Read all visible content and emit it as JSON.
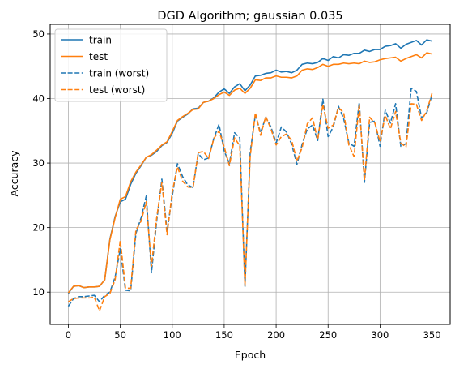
{
  "chart_data": {
    "type": "line",
    "title": "DGD Algorithm; gaussian 0.035",
    "xlabel": "Epoch",
    "ylabel": "Accuracy",
    "xlim": [
      -17.5,
      367.5
    ],
    "ylim": [
      5,
      51.5
    ],
    "xticks": [
      0,
      50,
      100,
      150,
      200,
      250,
      300,
      350
    ],
    "yticks": [
      10,
      20,
      30,
      40,
      50
    ],
    "grid": true,
    "legend_position": "top-left",
    "x": [
      0,
      5,
      10,
      15,
      20,
      25,
      30,
      35,
      40,
      45,
      50,
      55,
      60,
      65,
      70,
      75,
      80,
      85,
      90,
      95,
      100,
      105,
      110,
      115,
      120,
      125,
      130,
      135,
      140,
      145,
      150,
      155,
      160,
      165,
      170,
      175,
      180,
      185,
      190,
      195,
      200,
      205,
      210,
      215,
      220,
      225,
      230,
      235,
      240,
      245,
      250,
      255,
      260,
      265,
      270,
      275,
      280,
      285,
      290,
      295,
      300,
      305,
      310,
      315,
      320,
      325,
      330,
      335,
      340,
      345,
      350
    ],
    "series": [
      {
        "name": "train",
        "color": "#1f77b4",
        "dash": "solid",
        "values": [
          9.8,
          10.9,
          11.0,
          10.7,
          10.8,
          10.8,
          10.9,
          11.9,
          18.2,
          21.7,
          24.0,
          24.4,
          26.7,
          28.4,
          29.6,
          30.9,
          31.2,
          31.8,
          32.7,
          33.2,
          34.6,
          36.5,
          37.1,
          37.6,
          38.4,
          38.5,
          39.4,
          39.6,
          40.1,
          41.0,
          41.5,
          40.8,
          41.8,
          42.3,
          41.2,
          42.1,
          43.5,
          43.6,
          43.9,
          44.0,
          44.4,
          44.1,
          44.2,
          44.0,
          44.4,
          45.3,
          45.5,
          45.4,
          45.6,
          46.2,
          45.9,
          46.5,
          46.3,
          46.8,
          46.7,
          47.0,
          47.0,
          47.5,
          47.3,
          47.6,
          47.6,
          48.1,
          48.2,
          48.5,
          47.8,
          48.4,
          48.7,
          49.0,
          48.3,
          49.1,
          48.9
        ]
      },
      {
        "name": "test",
        "color": "#ff7f0e",
        "dash": "solid",
        "values": [
          9.9,
          10.9,
          11.0,
          10.7,
          10.8,
          10.8,
          10.9,
          11.9,
          18.1,
          21.5,
          24.4,
          24.8,
          27.1,
          28.6,
          29.7,
          30.9,
          31.3,
          32.0,
          32.8,
          33.3,
          34.9,
          36.6,
          37.2,
          37.7,
          38.3,
          38.4,
          39.4,
          39.6,
          40.0,
          40.6,
          41.0,
          40.5,
          41.3,
          41.6,
          40.8,
          41.6,
          42.9,
          42.8,
          43.2,
          43.2,
          43.5,
          43.3,
          43.3,
          43.2,
          43.5,
          44.4,
          44.6,
          44.5,
          44.8,
          45.3,
          45.0,
          45.3,
          45.3,
          45.5,
          45.4,
          45.5,
          45.4,
          45.8,
          45.6,
          45.7,
          46.0,
          46.2,
          46.3,
          46.4,
          45.8,
          46.2,
          46.5,
          46.8,
          46.3,
          47.1,
          46.9
        ]
      },
      {
        "name": "train (worst)",
        "color": "#1f77b4",
        "dash": "dashed",
        "values": [
          7.8,
          9.0,
          9.3,
          9.3,
          9.4,
          9.5,
          8.5,
          9.5,
          10.0,
          12.3,
          16.7,
          10.3,
          10.2,
          19.1,
          21.5,
          24.9,
          13.0,
          21.0,
          27.5,
          19.4,
          24.9,
          29.9,
          27.9,
          26.6,
          26.2,
          31.5,
          30.5,
          30.8,
          33.8,
          36.0,
          31.9,
          29.9,
          34.7,
          33.9,
          10.9,
          31.6,
          37.5,
          34.7,
          37.1,
          35.6,
          33.1,
          35.6,
          34.8,
          32.9,
          29.8,
          32.9,
          35.3,
          35.9,
          33.5,
          39.9,
          34.1,
          35.6,
          38.8,
          36.9,
          33.1,
          32.6,
          39.4,
          27.0,
          36.3,
          36.5,
          32.6,
          38.2,
          36.2,
          39.2,
          32.6,
          33.0,
          41.6,
          41.1,
          37.0,
          37.8,
          40.6
        ]
      },
      {
        "name": "test (worst)",
        "color": "#ff7f0e",
        "dash": "dashed",
        "values": [
          8.5,
          9.0,
          9.1,
          9.1,
          9.1,
          9.2,
          7.1,
          9.3,
          9.8,
          11.9,
          18.0,
          10.6,
          10.6,
          19.6,
          21.0,
          24.0,
          14.0,
          21.5,
          27.0,
          18.9,
          25.5,
          29.4,
          27.2,
          26.3,
          26.2,
          31.6,
          31.8,
          30.7,
          33.8,
          35.0,
          32.5,
          29.6,
          33.9,
          32.7,
          11.0,
          31.0,
          37.8,
          34.3,
          37.2,
          35.3,
          32.8,
          34.1,
          34.5,
          33.5,
          30.3,
          32.4,
          36.1,
          37.0,
          33.6,
          39.1,
          35.4,
          35.9,
          38.6,
          37.8,
          32.8,
          31.0,
          39.1,
          27.3,
          37.1,
          36.2,
          33.3,
          37.4,
          35.3,
          38.0,
          33.1,
          32.5,
          39.2,
          39.1,
          36.6,
          38.1,
          40.8
        ]
      }
    ]
  }
}
